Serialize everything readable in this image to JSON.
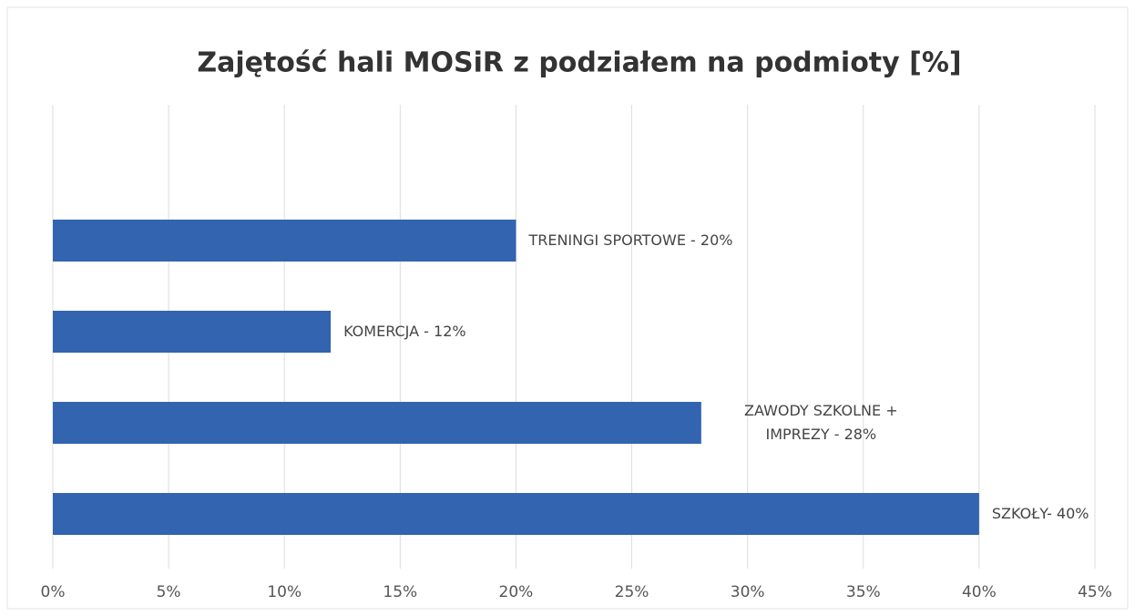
{
  "chart_data": {
    "type": "barh",
    "title": "Zajętość hali MOSiR z podziałem na podmioty [%]",
    "values": [
      20,
      12,
      28,
      40
    ],
    "value_labels": [
      "TRENINGI SPORTOWE - 20%",
      "KOMERCJA - 12%",
      "ZAWODY SZKOLNE + IMPREZY - 28%",
      "SZKOŁY- 40%"
    ],
    "color": "#3264b0",
    "xlim": [
      0,
      45
    ],
    "xticks": [
      {
        "value": 0,
        "label": "0%"
      },
      {
        "value": 5,
        "label": "5%"
      },
      {
        "value": 10,
        "label": "10%"
      },
      {
        "value": 15,
        "label": "15%"
      },
      {
        "value": 20,
        "label": "20%"
      },
      {
        "value": 25,
        "label": "25%"
      },
      {
        "value": 30,
        "label": "30%"
      },
      {
        "value": 35,
        "label": "35%"
      },
      {
        "value": 40,
        "label": "40%"
      },
      {
        "value": 45,
        "label": "45%"
      }
    ],
    "grid": true
  }
}
